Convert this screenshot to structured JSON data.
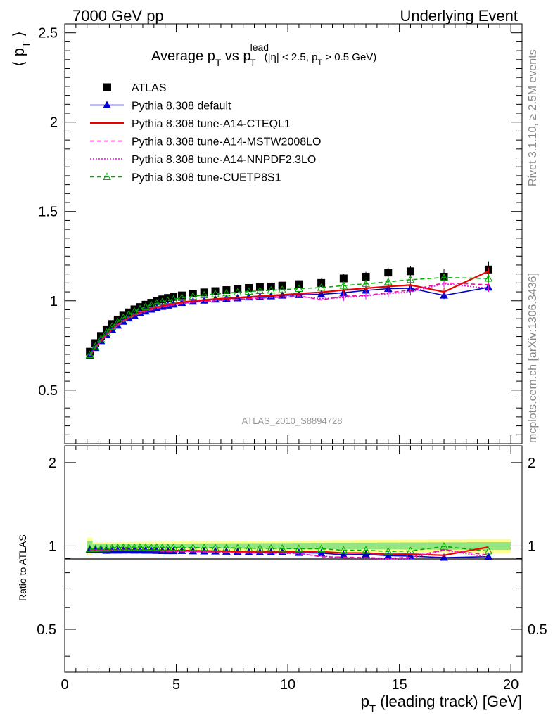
{
  "header": {
    "left": "7000 GeV pp",
    "right": "Underlying Event",
    "side_top": "Rivet 3.1.10, ≥ 2.5M events",
    "side_bottom": "mcplots.cern.ch [arXiv:1306.3436]"
  },
  "chart_data": {
    "type": "line",
    "title": "Average p",
    "title_sub": "T",
    "title_mid": " vs p",
    "title_sup": "lead",
    "title_sub2": "T",
    "title_cut": "(|η| < 2.5, p",
    "title_cut_sub": "T",
    "title_cut_end": " > 0.5 GeV)",
    "analysis_label": "ATLAS_2010_S8894728",
    "ylabel_main": "⟨ p",
    "ylabel_main_sub": "T",
    "ylabel_main_end": " ⟩",
    "ylabel_ratio": "Ratio to ATLAS",
    "xlabel": "p",
    "xlabel_sub": "T",
    "xlabel_end": " (leading track) [GeV]",
    "xlim": [
      0,
      20.5
    ],
    "ylim_main": [
      0.2,
      2.55
    ],
    "ylim_ratio": [
      0.35,
      2.3
    ],
    "x_ticks": [
      "0",
      "5",
      "10",
      "15",
      "20"
    ],
    "y_ticks_main": [
      "0.5",
      "1",
      "1.5",
      "2",
      "2.5"
    ],
    "y_ticks_ratio": [
      "0.5",
      "1",
      "2"
    ],
    "x": [
      1.125,
      1.375,
      1.625,
      1.875,
      2.125,
      2.375,
      2.625,
      2.875,
      3.125,
      3.375,
      3.625,
      3.875,
      4.125,
      4.375,
      4.625,
      4.875,
      5.25,
      5.75,
      6.25,
      6.75,
      7.25,
      7.75,
      8.25,
      8.75,
      9.25,
      9.75,
      10.5,
      11.5,
      12.5,
      13.5,
      14.5,
      15.5,
      17.0,
      19.0
    ],
    "series": [
      {
        "name": "ATLAS",
        "color": "#000000",
        "style": "points",
        "values": [
          0.715,
          0.763,
          0.803,
          0.84,
          0.87,
          0.895,
          0.917,
          0.935,
          0.952,
          0.965,
          0.978,
          0.989,
          0.998,
          1.008,
          1.016,
          1.022,
          1.03,
          1.04,
          1.047,
          1.054,
          1.06,
          1.066,
          1.072,
          1.077,
          1.08,
          1.085,
          1.093,
          1.1,
          1.125,
          1.135,
          1.158,
          1.165,
          1.135,
          1.175
        ]
      },
      {
        "name": "Pythia 8.308 default",
        "color": "#0000cc",
        "style": "solid-triangle",
        "values": [
          0.693,
          0.737,
          0.775,
          0.808,
          0.838,
          0.862,
          0.884,
          0.902,
          0.917,
          0.93,
          0.941,
          0.952,
          0.959,
          0.967,
          0.974,
          0.98,
          0.989,
          0.996,
          1.002,
          1.008,
          1.012,
          1.015,
          1.02,
          1.022,
          1.026,
          1.03,
          1.033,
          1.036,
          1.045,
          1.058,
          1.068,
          1.07,
          1.03,
          1.075
        ]
      },
      {
        "name": "Pythia 8.308 tune-A14-CTEQL1",
        "color": "#ee0000",
        "style": "solid",
        "values": [
          0.695,
          0.738,
          0.777,
          0.811,
          0.841,
          0.866,
          0.888,
          0.906,
          0.921,
          0.934,
          0.946,
          0.956,
          0.964,
          0.971,
          0.977,
          0.983,
          0.992,
          0.999,
          1.005,
          1.01,
          1.014,
          1.018,
          1.022,
          1.026,
          1.03,
          1.033,
          1.04,
          1.048,
          1.06,
          1.07,
          1.08,
          1.088,
          1.05,
          1.165
        ]
      },
      {
        "name": "Pythia 8.308 tune-A14-MSTW2008LO",
        "color": "#ee1199",
        "style": "dashed",
        "values": [
          0.692,
          0.735,
          0.774,
          0.808,
          0.838,
          0.863,
          0.884,
          0.902,
          0.917,
          0.929,
          0.94,
          0.95,
          0.958,
          0.965,
          0.971,
          0.977,
          0.985,
          0.992,
          0.997,
          1.001,
          1.005,
          1.008,
          1.012,
          1.015,
          1.018,
          1.021,
          1.028,
          1.005,
          1.025,
          1.03,
          1.045,
          1.06,
          1.1,
          1.09
        ]
      },
      {
        "name": "Pythia 8.308 tune-A14-NNPDF2.3LO",
        "color": "#dd11dd",
        "style": "dotted",
        "values": [
          0.692,
          0.735,
          0.773,
          0.807,
          0.837,
          0.862,
          0.883,
          0.901,
          0.916,
          0.928,
          0.939,
          0.949,
          0.957,
          0.964,
          0.97,
          0.976,
          0.984,
          0.991,
          0.996,
          1.0,
          1.004,
          1.007,
          1.011,
          1.014,
          1.017,
          1.02,
          1.024,
          1.012,
          1.018,
          1.028,
          1.04,
          1.05,
          1.095,
          1.07
        ]
      },
      {
        "name": "Pythia 8.308 tune-CUETP8S1",
        "color": "#00aa00",
        "style": "dashed-open-triangle",
        "values": [
          0.698,
          0.745,
          0.786,
          0.823,
          0.856,
          0.882,
          0.905,
          0.924,
          0.94,
          0.954,
          0.966,
          0.977,
          0.986,
          0.994,
          1.001,
          1.008,
          1.017,
          1.025,
          1.032,
          1.038,
          1.043,
          1.048,
          1.052,
          1.056,
          1.059,
          1.062,
          1.068,
          1.074,
          1.085,
          1.095,
          1.106,
          1.118,
          1.13,
          1.125
        ]
      }
    ]
  }
}
